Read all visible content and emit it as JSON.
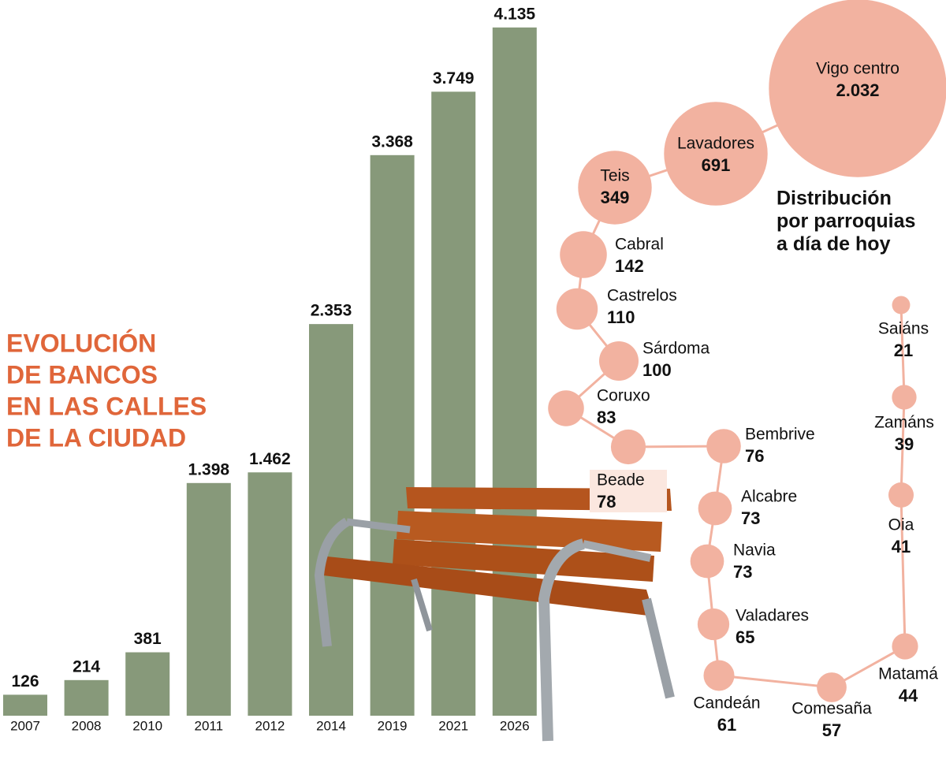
{
  "chart_data": [
    {
      "type": "bar",
      "title": [
        "EVOLUCIÓN",
        "DE BANCOS",
        "EN LAS CALLES",
        "DE LA CIUDAD"
      ],
      "categories": [
        "2007",
        "2008",
        "2010",
        "2011",
        "2012",
        "2014",
        "2019",
        "2021",
        "2026"
      ],
      "values": [
        126,
        214,
        381,
        1398,
        1462,
        2353,
        3368,
        3749,
        4135
      ],
      "value_labels": [
        "126",
        "214",
        "381",
        "1.398",
        "1.462",
        "2.353",
        "3.368",
        "3.749",
        "4.135"
      ],
      "color": "#87997a",
      "ylim": [
        0,
        4300
      ]
    },
    {
      "type": "bubble",
      "title": [
        "Distribución",
        "por parroquias",
        "a día de hoy"
      ],
      "categories": [
        "Vigo centro",
        "Lavadores",
        "Teis",
        "Cabral",
        "Castrelos",
        "Sárdoma",
        "Coruxo",
        "Beade",
        "Bembrive",
        "Alcabre",
        "Navia",
        "Valadares",
        "Candeán",
        "Comesaña",
        "Matamá",
        "Oia",
        "Zamáns",
        "Saiáns"
      ],
      "values": [
        2032,
        691,
        349,
        142,
        110,
        100,
        83,
        78,
        76,
        73,
        73,
        65,
        61,
        57,
        44,
        41,
        39,
        21
      ],
      "value_labels": [
        "2.032",
        "691",
        "349",
        "142",
        "110",
        "100",
        "83",
        "78",
        "76",
        "73",
        "73",
        "65",
        "61",
        "57",
        "44",
        "41",
        "39",
        "21"
      ],
      "color": "#f2b2a0"
    }
  ]
}
